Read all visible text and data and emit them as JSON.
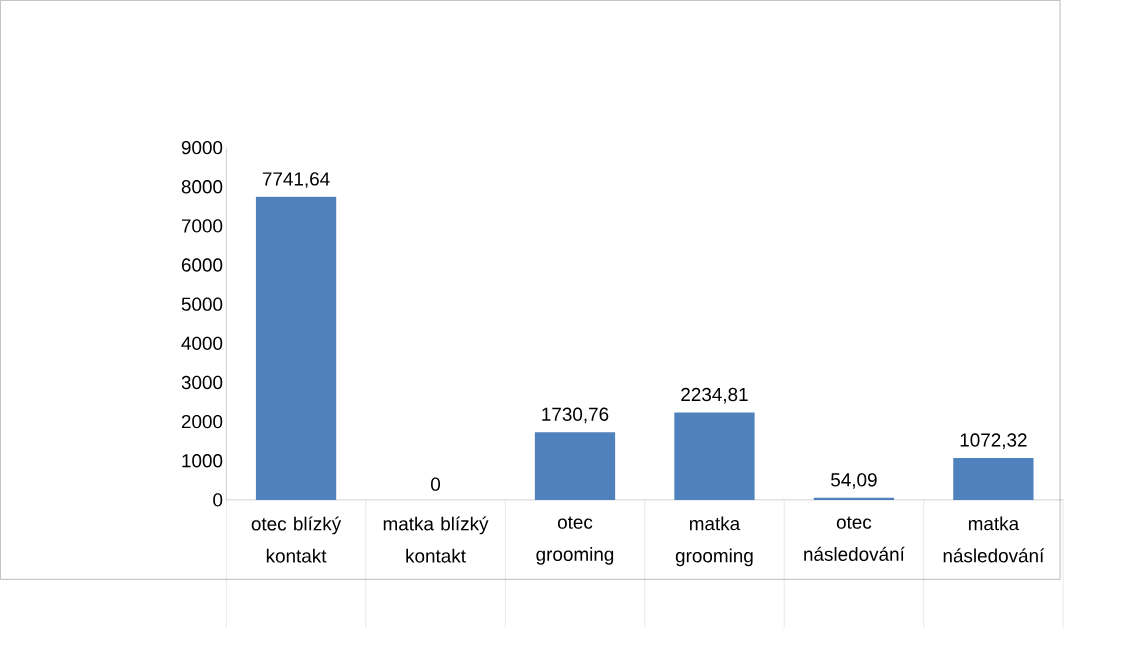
{
  "chart_data": {
    "type": "bar",
    "categories": [
      "otec blízký kontakt",
      "matka blízký kontakt",
      "otec grooming",
      "matka grooming",
      "otec následování",
      "matka následování"
    ],
    "values": [
      7741.64,
      0,
      1730.76,
      2234.81,
      54.09,
      1072.32
    ],
    "value_labels": [
      "7741,64",
      "0",
      "1730,76",
      "2234,81",
      "54,09",
      "1072,32"
    ],
    "color": "#4f81bd",
    "ylim": [
      0,
      9000
    ],
    "yticks": [
      0,
      1000,
      2000,
      3000,
      4000,
      5000,
      6000,
      7000,
      8000,
      9000
    ],
    "grid": false
  }
}
